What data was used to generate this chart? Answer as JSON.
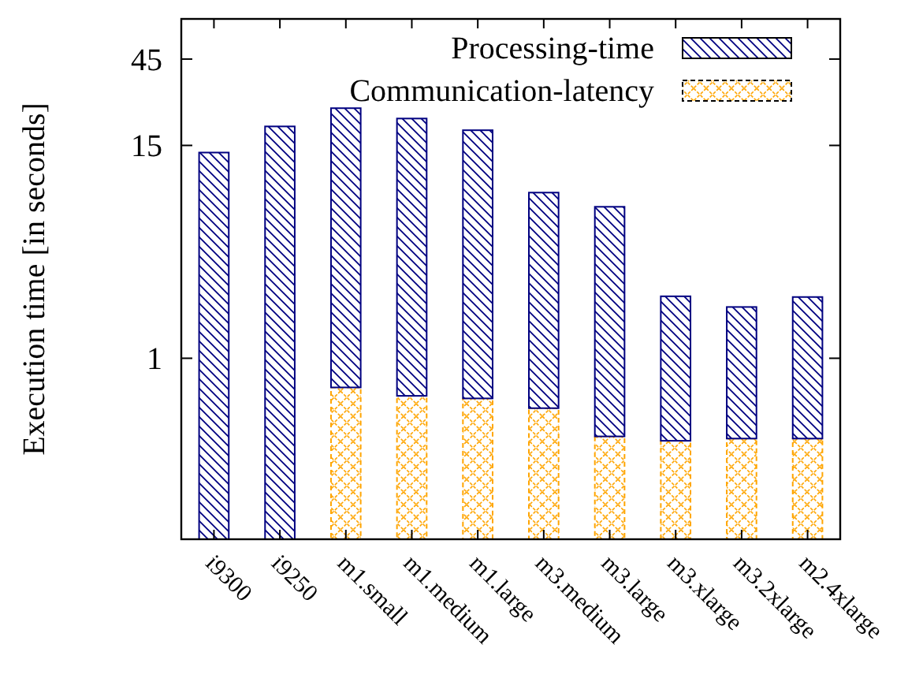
{
  "chart_data": {
    "type": "bar",
    "stacked": true,
    "log": true,
    "ylabel": "Execution time [in seconds]",
    "categories": [
      "i9300",
      "i9250",
      "m1.small",
      "m1.medium",
      "m1.large",
      "m3.medium",
      "m3.large",
      "m3.xlarge",
      "m3.2xlarge",
      "m2.4xlarge"
    ],
    "series": [
      {
        "name": "Communication-latency",
        "color": "#ffa500",
        "values": [
          null,
          null,
          0.69,
          0.62,
          0.6,
          0.53,
          0.37,
          0.35,
          0.36,
          0.36
        ]
      },
      {
        "name": "Processing-time",
        "color": "#000080",
        "values": [
          13.7,
          19.1,
          23.4,
          20.5,
          17.6,
          7.7,
          6.5,
          1.85,
          1.56,
          1.82
        ]
      }
    ],
    "ylim": [
      0.1,
      75
    ],
    "yticks": [
      1,
      15,
      45
    ],
    "grid": false,
    "legend": "top right"
  }
}
